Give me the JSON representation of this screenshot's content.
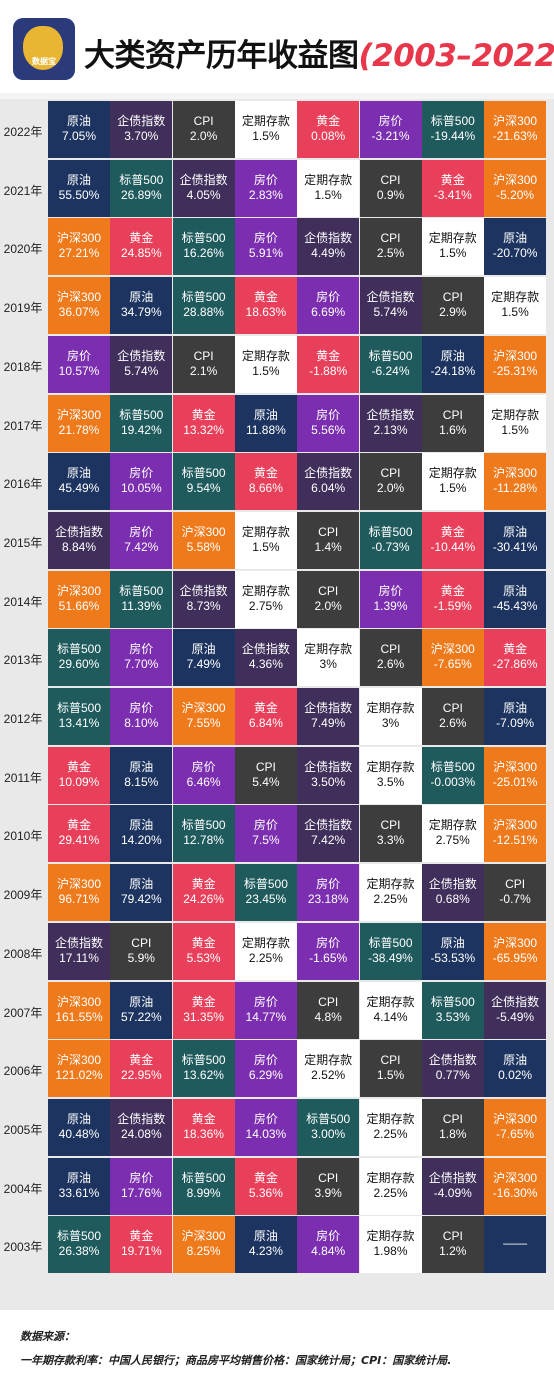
{
  "header": {
    "logo_text": "数据宝",
    "logo_sub": "Data",
    "title_main": "大类资产历年收益图",
    "title_years": "(2003–2022)"
  },
  "colors": {
    "原油": "#1d3460",
    "企债指数": "#3f2f5a",
    "CPI": "#3d3d3d",
    "定期存款": "#ffffff",
    "黄金": "#e8405a",
    "房价": "#7b2fb0",
    "标普500": "#1f5a5c",
    "沪深300": "#ee7a1c",
    "—": "#1d3460"
  },
  "chart_data": {
    "type": "table",
    "title": "大类资产历年收益图(2003–2022)",
    "rows": [
      {
        "year": "2022年",
        "cells": [
          [
            "原油",
            "7.05%"
          ],
          [
            "企债指数",
            "3.70%"
          ],
          [
            "CPI",
            "2.0%"
          ],
          [
            "定期存款",
            "1.5%"
          ],
          [
            "黄金",
            "0.08%"
          ],
          [
            "房价",
            "-3.21%"
          ],
          [
            "标普500",
            "-19.44%"
          ],
          [
            "沪深300",
            "-21.63%"
          ]
        ]
      },
      {
        "year": "2021年",
        "cells": [
          [
            "原油",
            "55.50%"
          ],
          [
            "标普500",
            "26.89%"
          ],
          [
            "企债指数",
            "4.05%"
          ],
          [
            "房价",
            "2.83%"
          ],
          [
            "定期存款",
            "1.5%"
          ],
          [
            "CPI",
            "0.9%"
          ],
          [
            "黄金",
            "-3.41%"
          ],
          [
            "沪深300",
            "-5.20%"
          ]
        ]
      },
      {
        "year": "2020年",
        "cells": [
          [
            "沪深300",
            "27.21%"
          ],
          [
            "黄金",
            "24.85%"
          ],
          [
            "标普500",
            "16.26%"
          ],
          [
            "房价",
            "5.91%"
          ],
          [
            "企债指数",
            "4.49%"
          ],
          [
            "CPI",
            "2.5%"
          ],
          [
            "定期存款",
            "1.5%"
          ],
          [
            "原油",
            "-20.70%"
          ]
        ]
      },
      {
        "year": "2019年",
        "cells": [
          [
            "沪深300",
            "36.07%"
          ],
          [
            "原油",
            "34.79%"
          ],
          [
            "标普500",
            "28.88%"
          ],
          [
            "黄金",
            "18.63%"
          ],
          [
            "房价",
            "6.69%"
          ],
          [
            "企债指数",
            "5.74%"
          ],
          [
            "CPI",
            "2.9%"
          ],
          [
            "定期存款",
            "1.5%"
          ]
        ]
      },
      {
        "year": "2018年",
        "cells": [
          [
            "房价",
            "10.57%"
          ],
          [
            "企债指数",
            "5.74%"
          ],
          [
            "CPI",
            "2.1%"
          ],
          [
            "定期存款",
            "1.5%"
          ],
          [
            "黄金",
            "-1.88%"
          ],
          [
            "标普500",
            "-6.24%"
          ],
          [
            "原油",
            "-24.18%"
          ],
          [
            "沪深300",
            "-25.31%"
          ]
        ]
      },
      {
        "year": "2017年",
        "cells": [
          [
            "沪深300",
            "21.78%"
          ],
          [
            "标普500",
            "19.42%"
          ],
          [
            "黄金",
            "13.32%"
          ],
          [
            "原油",
            "11.88%"
          ],
          [
            "房价",
            "5.56%"
          ],
          [
            "企债指数",
            "2.13%"
          ],
          [
            "CPI",
            "1.6%"
          ],
          [
            "定期存款",
            "1.5%"
          ]
        ]
      },
      {
        "year": "2016年",
        "cells": [
          [
            "原油",
            "45.49%"
          ],
          [
            "房价",
            "10.05%"
          ],
          [
            "标普500",
            "9.54%"
          ],
          [
            "黄金",
            "8.66%"
          ],
          [
            "企债指数",
            "6.04%"
          ],
          [
            "CPI",
            "2.0%"
          ],
          [
            "定期存款",
            "1.5%"
          ],
          [
            "沪深300",
            "-11.28%"
          ]
        ]
      },
      {
        "year": "2015年",
        "cells": [
          [
            "企债指数",
            "8.84%"
          ],
          [
            "房价",
            "7.42%"
          ],
          [
            "沪深300",
            "5.58%"
          ],
          [
            "定期存款",
            "1.5%"
          ],
          [
            "CPI",
            "1.4%"
          ],
          [
            "标普500",
            "-0.73%"
          ],
          [
            "黄金",
            "-10.44%"
          ],
          [
            "原油",
            "-30.41%"
          ]
        ]
      },
      {
        "year": "2014年",
        "cells": [
          [
            "沪深300",
            "51.66%"
          ],
          [
            "标普500",
            "11.39%"
          ],
          [
            "企债指数",
            "8.73%"
          ],
          [
            "定期存款",
            "2.75%"
          ],
          [
            "CPI",
            "2.0%"
          ],
          [
            "房价",
            "1.39%"
          ],
          [
            "黄金",
            "-1.59%"
          ],
          [
            "原油",
            "-45.43%"
          ]
        ]
      },
      {
        "year": "2013年",
        "cells": [
          [
            "标普500",
            "29.60%"
          ],
          [
            "房价",
            "7.70%"
          ],
          [
            "原油",
            "7.49%"
          ],
          [
            "企债指数",
            "4.36%"
          ],
          [
            "定期存款",
            "3%"
          ],
          [
            "CPI",
            "2.6%"
          ],
          [
            "沪深300",
            "-7.65%"
          ],
          [
            "黄金",
            "-27.86%"
          ]
        ]
      },
      {
        "year": "2012年",
        "cells": [
          [
            "标普500",
            "13.41%"
          ],
          [
            "房价",
            "8.10%"
          ],
          [
            "沪深300",
            "7.55%"
          ],
          [
            "黄金",
            "6.84%"
          ],
          [
            "企债指数",
            "7.49%"
          ],
          [
            "定期存款",
            "3%"
          ],
          [
            "CPI",
            "2.6%"
          ],
          [
            "原油",
            "-7.09%"
          ]
        ]
      },
      {
        "year": "2011年",
        "cells": [
          [
            "黄金",
            "10.09%"
          ],
          [
            "原油",
            "8.15%"
          ],
          [
            "房价",
            "6.46%"
          ],
          [
            "CPI",
            "5.4%"
          ],
          [
            "企债指数",
            "3.50%"
          ],
          [
            "定期存款",
            "3.5%"
          ],
          [
            "标普500",
            "-0.003%"
          ],
          [
            "沪深300",
            "-25.01%"
          ]
        ]
      },
      {
        "year": "2010年",
        "cells": [
          [
            "黄金",
            "29.41%"
          ],
          [
            "原油",
            "14.20%"
          ],
          [
            "标普500",
            "12.78%"
          ],
          [
            "房价",
            "7.5%"
          ],
          [
            "企债指数",
            "7.42%"
          ],
          [
            "CPI",
            "3.3%"
          ],
          [
            "定期存款",
            "2.75%"
          ],
          [
            "沪深300",
            "-12.51%"
          ]
        ]
      },
      {
        "year": "2009年",
        "cells": [
          [
            "沪深300",
            "96.71%"
          ],
          [
            "原油",
            "79.42%"
          ],
          [
            "黄金",
            "24.26%"
          ],
          [
            "标普500",
            "23.45%"
          ],
          [
            "房价",
            "23.18%"
          ],
          [
            "定期存款",
            "2.25%"
          ],
          [
            "企债指数",
            "0.68%"
          ],
          [
            "CPI",
            "-0.7%"
          ]
        ]
      },
      {
        "year": "2008年",
        "cells": [
          [
            "企债指数",
            "17.11%"
          ],
          [
            "CPI",
            "5.9%"
          ],
          [
            "黄金",
            "5.53%"
          ],
          [
            "定期存款",
            "2.25%"
          ],
          [
            "房价",
            "-1.65%"
          ],
          [
            "标普500",
            "-38.49%"
          ],
          [
            "原油",
            "-53.53%"
          ],
          [
            "沪深300",
            "-65.95%"
          ]
        ]
      },
      {
        "year": "2007年",
        "cells": [
          [
            "沪深300",
            "161.55%"
          ],
          [
            "原油",
            "57.22%"
          ],
          [
            "黄金",
            "31.35%"
          ],
          [
            "房价",
            "14.77%"
          ],
          [
            "CPI",
            "4.8%"
          ],
          [
            "定期存款",
            "4.14%"
          ],
          [
            "标普500",
            "3.53%"
          ],
          [
            "企债指数",
            "-5.49%"
          ]
        ]
      },
      {
        "year": "2006年",
        "cells": [
          [
            "沪深300",
            "121.02%"
          ],
          [
            "黄金",
            "22.95%"
          ],
          [
            "标普500",
            "13.62%"
          ],
          [
            "房价",
            "6.29%"
          ],
          [
            "定期存款",
            "2.52%"
          ],
          [
            "CPI",
            "1.5%"
          ],
          [
            "企债指数",
            "0.77%"
          ],
          [
            "原油",
            "0.02%"
          ]
        ]
      },
      {
        "year": "2005年",
        "cells": [
          [
            "原油",
            "40.48%"
          ],
          [
            "企债指数",
            "24.08%"
          ],
          [
            "黄金",
            "18.36%"
          ],
          [
            "房价",
            "14.03%"
          ],
          [
            "标普500",
            "3.00%"
          ],
          [
            "定期存款",
            "2.25%"
          ],
          [
            "CPI",
            "1.8%"
          ],
          [
            "沪深300",
            "-7.65%"
          ]
        ]
      },
      {
        "year": "2004年",
        "cells": [
          [
            "原油",
            "33.61%"
          ],
          [
            "房价",
            "17.76%"
          ],
          [
            "标普500",
            "8.99%"
          ],
          [
            "黄金",
            "5.36%"
          ],
          [
            "CPI",
            "3.9%"
          ],
          [
            "定期存款",
            "2.25%"
          ],
          [
            "企债指数",
            "-4.09%"
          ],
          [
            "沪深300",
            "-16.30%"
          ]
        ]
      },
      {
        "year": "2003年",
        "cells": [
          [
            "标普500",
            "26.38%"
          ],
          [
            "黄金",
            "19.71%"
          ],
          [
            "沪深300",
            "8.25%"
          ],
          [
            "原油",
            "4.23%"
          ],
          [
            "房价",
            "4.84%"
          ],
          [
            "定期存款",
            "1.98%"
          ],
          [
            "CPI",
            "1.2%"
          ],
          [
            "—",
            "——"
          ]
        ]
      }
    ]
  },
  "footer": {
    "source_label": "数据来源：",
    "source_text": "一年期存款利率：中国人民银行；商品房平均销售价格：国家统计局；CPI：国家统计局."
  }
}
